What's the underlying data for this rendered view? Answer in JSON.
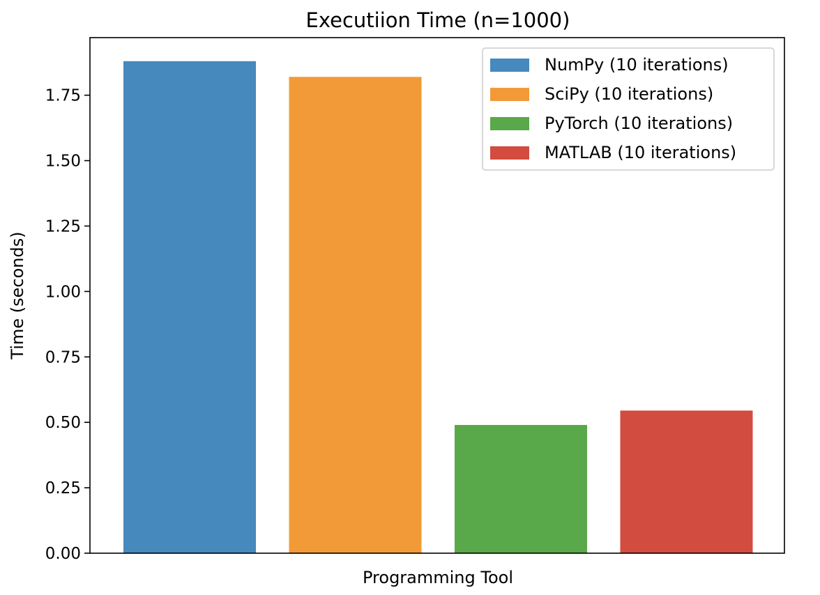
{
  "chart_data": {
    "type": "bar",
    "title": "Executiion Time (n=1000)",
    "xlabel": "Programming Tool",
    "ylabel": "Time (seconds)",
    "ylim": [
      0,
      1.97
    ],
    "yticks": [
      "0.00",
      "0.25",
      "0.50",
      "0.75",
      "1.00",
      "1.25",
      "1.50",
      "1.75"
    ],
    "grid": false,
    "legend_position": "top-right",
    "categories": [
      "NumPy",
      "SciPy",
      "PyTorch",
      "MATLAB"
    ],
    "series": [
      {
        "name": "NumPy (10 iterations)",
        "value": 1.88,
        "color": "#4689bd"
      },
      {
        "name": "SciPy (10 iterations)",
        "value": 1.82,
        "color": "#f29a38"
      },
      {
        "name": "PyTorch (10 iterations)",
        "value": 0.49,
        "color": "#59a84a"
      },
      {
        "name": "MATLAB (10 iterations)",
        "value": 0.545,
        "color": "#d24c40"
      }
    ]
  }
}
